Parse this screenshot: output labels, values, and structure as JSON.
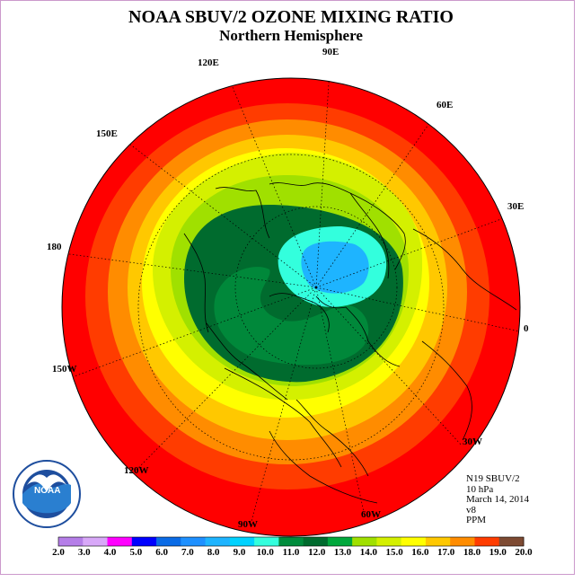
{
  "title": "NOAA SBUV/2 OZONE MIXING RATIO",
  "subtitle": "Northern Hemisphere",
  "longitude_labels": [
    "120E",
    "90E",
    "60E",
    "150E",
    "30E",
    "180",
    "0",
    "150W",
    "30W",
    "120W",
    "60W",
    "90W"
  ],
  "info": {
    "satellite": "N19 SBUV/2",
    "level": "10 hPa",
    "date": "March 14, 2014",
    "version": "v8",
    "units": "PPM"
  },
  "colorbar": {
    "labels": [
      "2.0",
      "3.0",
      "4.0",
      "5.0",
      "6.0",
      "7.0",
      "8.0",
      "9.0",
      "10.0",
      "11.0",
      "12.0",
      "13.0",
      "14.0",
      "15.0",
      "16.0",
      "17.0",
      "18.0",
      "19.0",
      "20.0"
    ],
    "colors": [
      "#b57ee8",
      "#d8a8f8",
      "#ff00ff",
      "#0000ff",
      "#0a6be6",
      "#1e90ff",
      "#1eb4ff",
      "#00d2ff",
      "#33ffdd",
      "#008c3c",
      "#006b2e",
      "#00a83c",
      "#a0e000",
      "#d4f000",
      "#ffff00",
      "#ffc800",
      "#ff8c00",
      "#ff3c00",
      "#7d4a32"
    ]
  },
  "logo_text": "NOAA",
  "colors": {
    "ring_red": "#ff0000",
    "ring_orange_red": "#ff3c00",
    "ring_orange": "#ff8c00",
    "ring_amber": "#ffc800",
    "ring_yellow": "#ffff00",
    "ring_yellow_green": "#d4f000",
    "ring_lime": "#a0e000",
    "ring_green": "#00a83c",
    "ring_dark_green": "#006b2e",
    "core_cyan": "#33ffdd",
    "core_light_blue": "#1eb4ff"
  }
}
